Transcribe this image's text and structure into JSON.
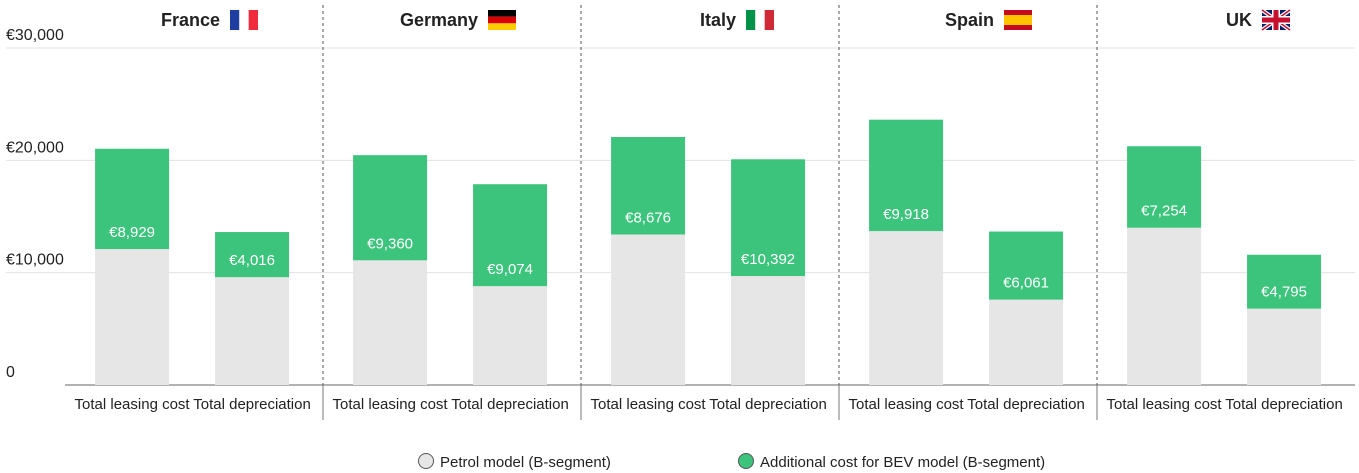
{
  "chart_data": {
    "type": "bar",
    "stacked": true,
    "grid": true,
    "legend": "bottom",
    "groups": [
      "France",
      "Germany",
      "Italy",
      "Spain",
      "UK"
    ],
    "categories": [
      "Total leasing cost",
      "Total depreciation",
      "Total leasing cost",
      "Total depreciation",
      "Total leasing cost",
      "Total depreciation",
      "Total leasing cost",
      "Total depreciation",
      "Total leasing cost",
      "Total depreciation"
    ],
    "ylim": [
      0,
      30000
    ],
    "yticks": [
      0,
      {
        "value": 10000,
        "label": "€10,000"
      },
      {
        "value": 20000,
        "label": "€20,000"
      },
      {
        "value": 30000,
        "label": "€30,000"
      }
    ],
    "series": [
      {
        "name": "Petrol model (B-segment)",
        "color": "#e6e6e6",
        "values": [
          12100,
          9600,
          11100,
          8800,
          13400,
          9700,
          13700,
          7600,
          14000,
          6800
        ]
      },
      {
        "name": "Additional cost for BEV model (B-segment)",
        "color": "#3cc47c",
        "values": [
          8929,
          4016,
          9360,
          9074,
          8676,
          10392,
          9918,
          6061,
          7254,
          4795
        ],
        "value_labels": [
          "€8,929",
          "€4,016",
          "€9,360",
          "€9,074",
          "€8,676",
          "€10,392",
          "€9,918",
          "€6,061",
          "€7,254",
          "€4,795"
        ]
      }
    ]
  }
}
